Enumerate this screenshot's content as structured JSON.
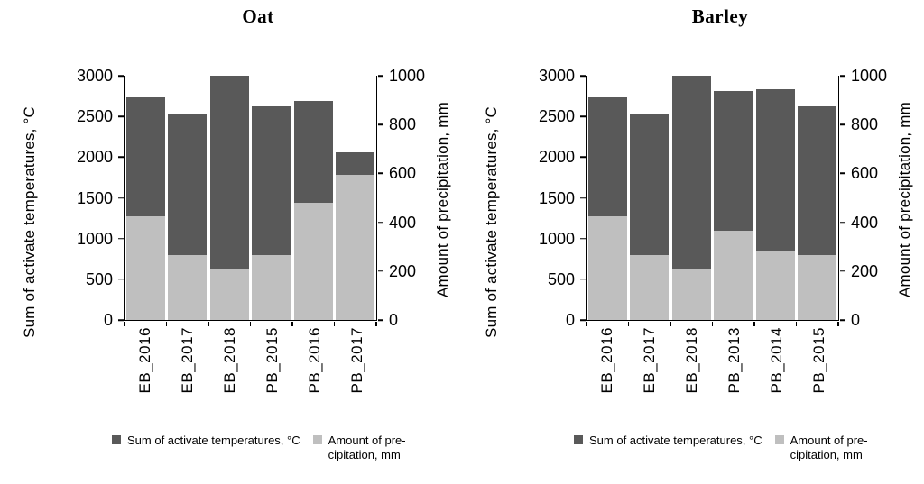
{
  "figure": {
    "background": "#ffffff",
    "text_color": "#000000"
  },
  "colors": {
    "temperature_bar": "#595959",
    "precipitation_bar": "#bfbfbf",
    "axis": "#000000"
  },
  "chart_data": [
    {
      "type": "bar",
      "title": "Oat",
      "bar_mode": "overlap-dual-axis",
      "grid": false,
      "legend_position": "bottom",
      "categories": [
        "EB_2016",
        "EB_2017",
        "EB_2018",
        "PB_2015",
        "PB_2016",
        "PB_2017"
      ],
      "series": [
        {
          "name": "Sum of activate temperatures, °C",
          "axis": "left",
          "color": "#595959",
          "values": [
            2740,
            2530,
            3000,
            2620,
            2690,
            2060
          ]
        },
        {
          "name": "Amount of precipitation, mm",
          "axis": "right",
          "color": "#bfbfbf",
          "values": [
            425,
            265,
            210,
            265,
            480,
            595
          ]
        }
      ],
      "left_axis": {
        "label": "Sum of activate temperatures, °C",
        "min": 0,
        "max": 3000,
        "step": 500
      },
      "right_axis": {
        "label": "Amount of precipitation, mm",
        "min": 0,
        "max": 1000,
        "step": 200
      },
      "legend": [
        {
          "label": "Sum of activate temperatures, °C",
          "color": "#595959"
        },
        {
          "label": "Amount of pre-\ncipitation, mm",
          "color": "#bfbfbf"
        }
      ]
    },
    {
      "type": "bar",
      "title": "Barley",
      "bar_mode": "overlap-dual-axis",
      "grid": false,
      "legend_position": "bottom",
      "categories": [
        "EB_2016",
        "EB_2017",
        "EB_2018",
        "PB_2013",
        "PB_2014",
        "PB_2015"
      ],
      "series": [
        {
          "name": "Sum of activate temperatures, °C",
          "axis": "left",
          "color": "#595959",
          "values": [
            2740,
            2530,
            3000,
            2810,
            2830,
            2620
          ]
        },
        {
          "name": "Amount of precipitation, mm",
          "axis": "right",
          "color": "#bfbfbf",
          "values": [
            425,
            265,
            210,
            365,
            280,
            265
          ]
        }
      ],
      "left_axis": {
        "label": "Sum of activate temperatures, °C",
        "min": 0,
        "max": 3000,
        "step": 500
      },
      "right_axis": {
        "label": "Amount of precipitation, mm",
        "min": 0,
        "max": 1000,
        "step": 200
      },
      "legend": [
        {
          "label": "Sum of activate temperatures, °C",
          "color": "#595959"
        },
        {
          "label": "Amount of pre-\ncipitation, mm",
          "color": "#bfbfbf"
        }
      ]
    }
  ]
}
